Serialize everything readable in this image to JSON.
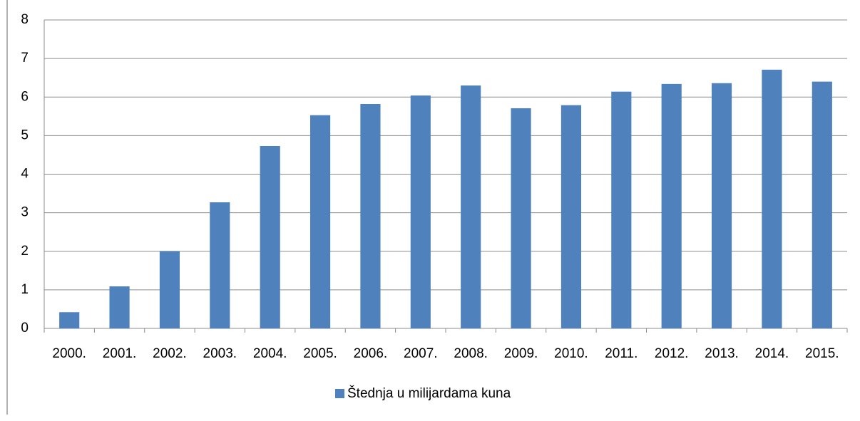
{
  "chart_data": {
    "type": "bar",
    "categories": [
      "2000.",
      "2001.",
      "2002.",
      "2003.",
      "2004.",
      "2005.",
      "2006.",
      "2007.",
      "2008.",
      "2009.",
      "2010.",
      "2011.",
      "2012.",
      "2013.",
      "2014.",
      "2015."
    ],
    "series": [
      {
        "name": "Štednja u milijardama kuna",
        "color": "#4f81bd",
        "values": [
          0.42,
          1.09,
          2.0,
          3.27,
          4.73,
          5.53,
          5.82,
          6.04,
          6.3,
          5.71,
          5.79,
          6.14,
          6.34,
          6.36,
          6.71,
          6.4
        ]
      }
    ],
    "ylim": [
      0,
      8
    ],
    "yticks": [
      0,
      1,
      2,
      3,
      4,
      5,
      6,
      7,
      8
    ],
    "grid": true,
    "legend": "bottom"
  }
}
